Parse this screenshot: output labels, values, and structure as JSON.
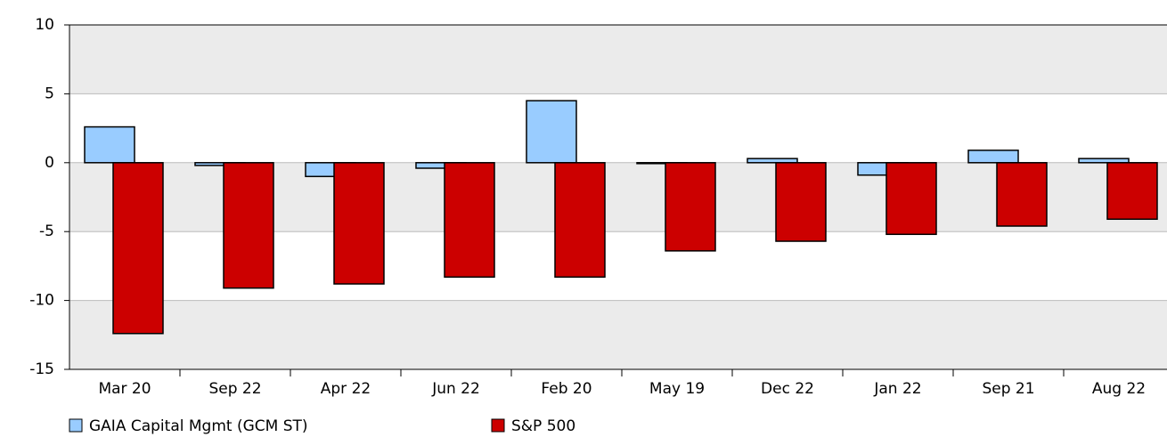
{
  "chart_data": {
    "type": "bar",
    "categories": [
      "Mar 20",
      "Sep 22",
      "Apr 22",
      "Jun 22",
      "Feb 20",
      "May 19",
      "Dec 22",
      "Jan 22",
      "Sep 21",
      "Aug 22"
    ],
    "series": [
      {
        "name": "GAIA Capital Mgmt (GCM ST)",
        "color": "#99ccff",
        "values": [
          2.6,
          -0.2,
          -1.0,
          -0.4,
          4.5,
          0.0,
          0.3,
          -0.9,
          0.9,
          0.3
        ]
      },
      {
        "name": "S&P 500",
        "color": "#cc0000",
        "values": [
          -12.4,
          -9.1,
          -8.8,
          -8.3,
          -8.3,
          -6.4,
          -5.7,
          -5.2,
          -4.6,
          -4.1
        ]
      }
    ],
    "ylim": [
      -15,
      10
    ],
    "yticks": [
      -15,
      -10,
      -5,
      0,
      5,
      10
    ],
    "grid": true
  }
}
